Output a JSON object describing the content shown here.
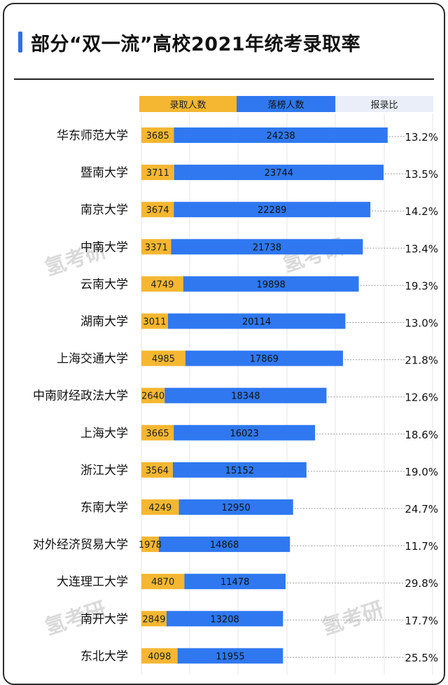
{
  "title": "部分“双一流”高校2021年统考录取率",
  "watermark": "氢考研",
  "colors": {
    "admitted": "#f5b731",
    "rejected": "#2f78f0",
    "ratio": "#e9eef8",
    "accent": "#2f6ff0"
  },
  "chart_data": {
    "type": "bar",
    "orientation": "horizontal",
    "stacked": true,
    "legend": [
      "录取人数",
      "落榜人数",
      "报录比"
    ],
    "categories": [
      "华东师范大学",
      "暨南大学",
      "南京大学",
      "中南大学",
      "云南大学",
      "湖南大学",
      "上海交通大学",
      "中南财经政法大学",
      "上海大学",
      "浙江大学",
      "东南大学",
      "对外经济贸易大学",
      "大连理工大学",
      "南开大学",
      "东北大学"
    ],
    "series": [
      {
        "name": "录取人数",
        "values": [
          3685,
          3711,
          3674,
          3371,
          4749,
          3011,
          4985,
          2640,
          3665,
          3564,
          4249,
          1978,
          4870,
          2849,
          4098
        ]
      },
      {
        "name": "落榜人数",
        "values": [
          24238,
          23744,
          22289,
          21738,
          19898,
          20114,
          17869,
          18348,
          16023,
          15152,
          12950,
          14868,
          11478,
          13208,
          11955
        ]
      }
    ],
    "ratios": [
      "13.2%",
      "13.5%",
      "14.2%",
      "13.4%",
      "19.3%",
      "13.0%",
      "21.8%",
      "12.6%",
      "18.6%",
      "19.0%",
      "24.7%",
      "11.7%",
      "29.8%",
      "17.7%",
      "25.5%"
    ]
  }
}
